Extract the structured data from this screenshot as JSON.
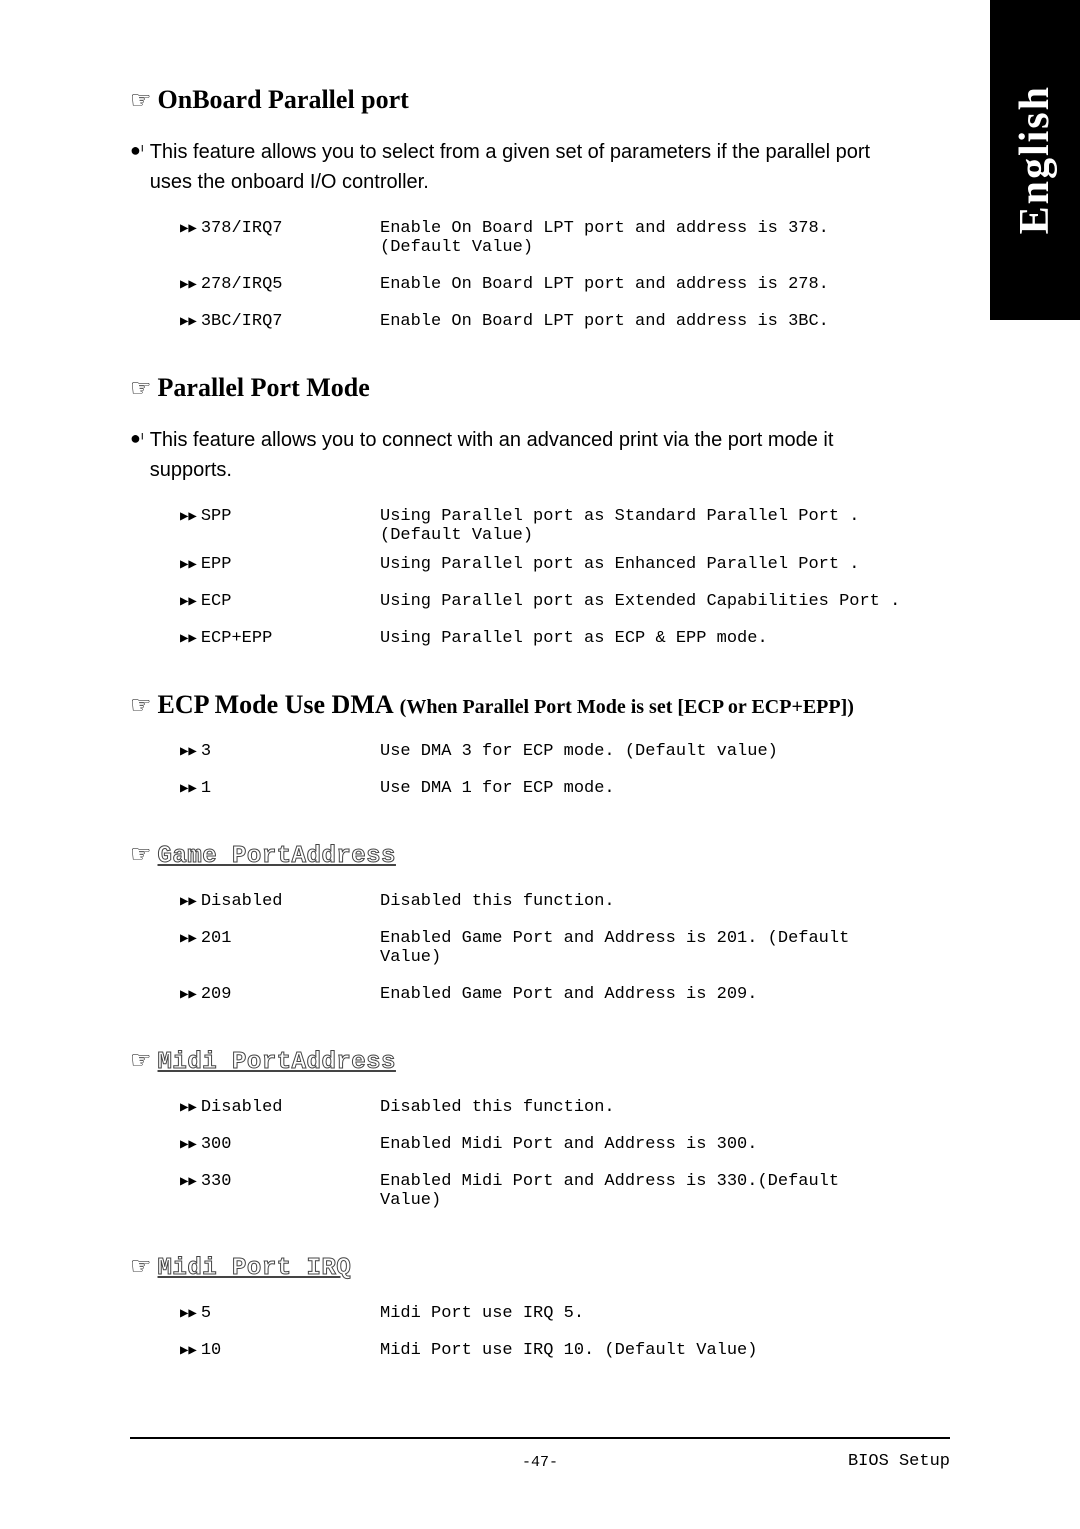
{
  "colors": {
    "page_bg": "#ffffff",
    "tab_bg": "#000000",
    "tab_text": "#ffffff",
    "text": "#000000"
  },
  "side_tab": "English",
  "sections": [
    {
      "id": "onboard-parallel",
      "style": "bold",
      "title": "OnBoard Parallel port",
      "intro": "This feature allows you to select from a given set of parameters if the parallel port uses the onboard I/O controller.",
      "options": [
        {
          "key": "378/IRQ7",
          "desc": "Enable On Board LPT port and address is 378.(Default Value)"
        },
        {
          "key": "278/IRQ5",
          "desc": "Enable On Board LPT port and address is 278."
        },
        {
          "key": "3BC/IRQ7",
          "desc": "Enable On Board LPT port and address is 3BC."
        }
      ]
    },
    {
      "id": "parallel-port-mode",
      "style": "bold",
      "title": "Parallel Port Mode",
      "intro": "This feature allows you to connect with an advanced print via the port mode it supports.",
      "options": [
        {
          "key": "SPP",
          "desc": "Using Parallel  port as Standard Parallel Port . (Default Value)",
          "tight": true
        },
        {
          "key": "EPP",
          "desc": "Using Parallel port as Enhanced Parallel Port ."
        },
        {
          "key": "ECP",
          "desc": "Using Parallel port as Extended Capabilities Port ."
        },
        {
          "key": "ECP+EPP",
          "desc": "Using Parallel port as ECP & EPP mode."
        }
      ]
    },
    {
      "id": "ecp-mode-dma",
      "style": "bold",
      "title": "ECP Mode Use DMA",
      "subtitle": "(When Parallel Port Mode is set [ECP or ECP+EPP])",
      "options": [
        {
          "key": "3",
          "desc": "Use DMA 3 for ECP mode. (Default value)"
        },
        {
          "key": "1",
          "desc": "Use DMA 1 for ECP mode."
        }
      ]
    },
    {
      "id": "game-port-address",
      "style": "outline",
      "title": "Game PortAddress",
      "options": [
        {
          "key": "Disabled",
          "desc": "Disabled this function."
        },
        {
          "key": "201",
          "desc": "Enabled Game Port and Address is 201. (Default Value)"
        },
        {
          "key": "209",
          "desc": "Enabled Game Port and Address is 209."
        }
      ]
    },
    {
      "id": "midi-port-address",
      "style": "outline",
      "title": "Midi PortAddress",
      "options": [
        {
          "key": "Disabled",
          "desc": "Disabled this function."
        },
        {
          "key": "300",
          "desc": "Enabled Midi Port and Address is 300."
        },
        {
          "key": "330",
          "desc": "Enabled Midi Port and Address is 330.(Default Value)"
        }
      ]
    },
    {
      "id": "midi-port-irq",
      "style": "outline",
      "title": "Midi Port IRQ",
      "options": [
        {
          "key": "5",
          "desc": "Midi Port use IRQ 5."
        },
        {
          "key": "10",
          "desc": "Midi Port use IRQ 10. (Default Value)"
        }
      ]
    }
  ],
  "page_number": "-47-",
  "footer_label": "BIOS Setup"
}
